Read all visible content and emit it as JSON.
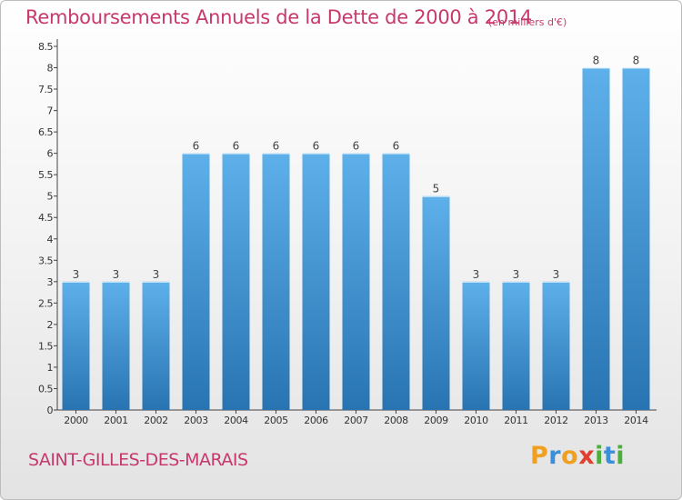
{
  "title": "Remboursements Annuels de la Dette de 2000 à 2014",
  "unit_note": "(en milliers d'€)",
  "commune": "SAINT-GILLES-DES-MARAIS",
  "logo": {
    "letters": [
      "P",
      "r",
      "o",
      "x",
      "i",
      "t",
      "i"
    ],
    "colors": [
      "#f0a020",
      "#3a8fd8",
      "#f0a020",
      "#e04030",
      "#4cae3c",
      "#3a8fd8",
      "#4cae3c"
    ]
  },
  "colors": {
    "bar_light": "#5eb0ea",
    "bar_dark": "#2874b2",
    "text_accent": "#c8386c",
    "axis": "#444444"
  },
  "chart_data": {
    "type": "bar",
    "categories": [
      "2000",
      "2001",
      "2002",
      "2003",
      "2004",
      "2005",
      "2006",
      "2007",
      "2008",
      "2009",
      "2010",
      "2011",
      "2012",
      "2013",
      "2014"
    ],
    "values": [
      3,
      3,
      3,
      6,
      6,
      6,
      6,
      6,
      6,
      5,
      3,
      3,
      3,
      8,
      8
    ],
    "data_labels": [
      "3",
      "3",
      "3",
      "6",
      "6",
      "6",
      "6",
      "6",
      "6",
      "5",
      "3",
      "3",
      "3",
      "8",
      "8"
    ],
    "yticks": [
      "0",
      "0.5",
      "1",
      "1.5",
      "2",
      "2.5",
      "3",
      "3.5",
      "4",
      "4.5",
      "5",
      "5.5",
      "6",
      "6.5",
      "7",
      "7.5",
      "8",
      "8.5"
    ],
    "ylim": [
      0,
      8.5
    ],
    "grid": false,
    "legend": "none"
  }
}
